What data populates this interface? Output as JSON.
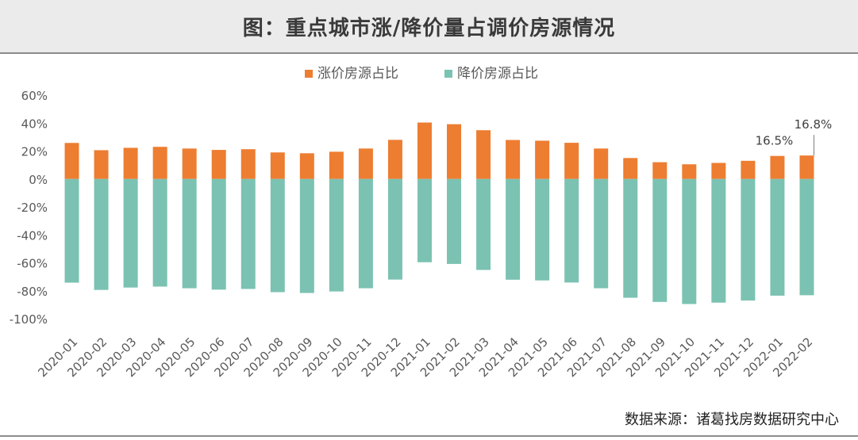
{
  "title": "图：重点城市涨/降价量占调价房源情况",
  "source": "数据来源：诸葛找房数据研究中心",
  "chart_data": {
    "type": "bar",
    "stacked": true,
    "categories": [
      "2020-01",
      "2020-02",
      "2020-03",
      "2020-04",
      "2020-05",
      "2020-06",
      "2020-07",
      "2020-08",
      "2020-09",
      "2020-10",
      "2020-11",
      "2020-12",
      "2021-01",
      "2021-02",
      "2021-03",
      "2021-04",
      "2021-05",
      "2021-06",
      "2021-07",
      "2021-08",
      "2021-09",
      "2021-10",
      "2021-11",
      "2021-12",
      "2022-01",
      "2022-02"
    ],
    "series": [
      {
        "name": "涨价房源占比",
        "color": "#ed7d31",
        "values": [
          25.8,
          20.6,
          22.3,
          23.0,
          21.8,
          20.8,
          21.3,
          19.0,
          18.4,
          19.5,
          21.8,
          28.0,
          40.4,
          39.2,
          34.9,
          27.9,
          27.4,
          25.9,
          21.8,
          15.0,
          12.0,
          10.5,
          11.5,
          13.0,
          16.5,
          16.8
        ]
      },
      {
        "name": "降价房源占比",
        "color": "#7bc2b2",
        "values": [
          -74.2,
          -79.4,
          -77.7,
          -77.0,
          -78.2,
          -79.2,
          -78.7,
          -81.0,
          -81.6,
          -80.5,
          -78.2,
          -72.0,
          -59.6,
          -60.8,
          -65.1,
          -72.1,
          -72.6,
          -74.1,
          -78.2,
          -85.0,
          -88.0,
          -89.5,
          -88.5,
          -87.0,
          -83.5,
          -83.2
        ]
      }
    ],
    "ylim": [
      -100,
      60
    ],
    "yticks": [
      -100,
      -80,
      -60,
      -40,
      -20,
      0,
      20,
      40,
      60
    ],
    "ytick_labels": [
      "-100%",
      "-80%",
      "-60%",
      "-40%",
      "-20%",
      "0%",
      "20%",
      "40%",
      "60%"
    ],
    "annotations": [
      {
        "category": "2022-01",
        "text": "16.5%"
      },
      {
        "category": "2022-02",
        "text": "16.8%"
      }
    ],
    "legend_position": "top-center",
    "grid": false
  }
}
